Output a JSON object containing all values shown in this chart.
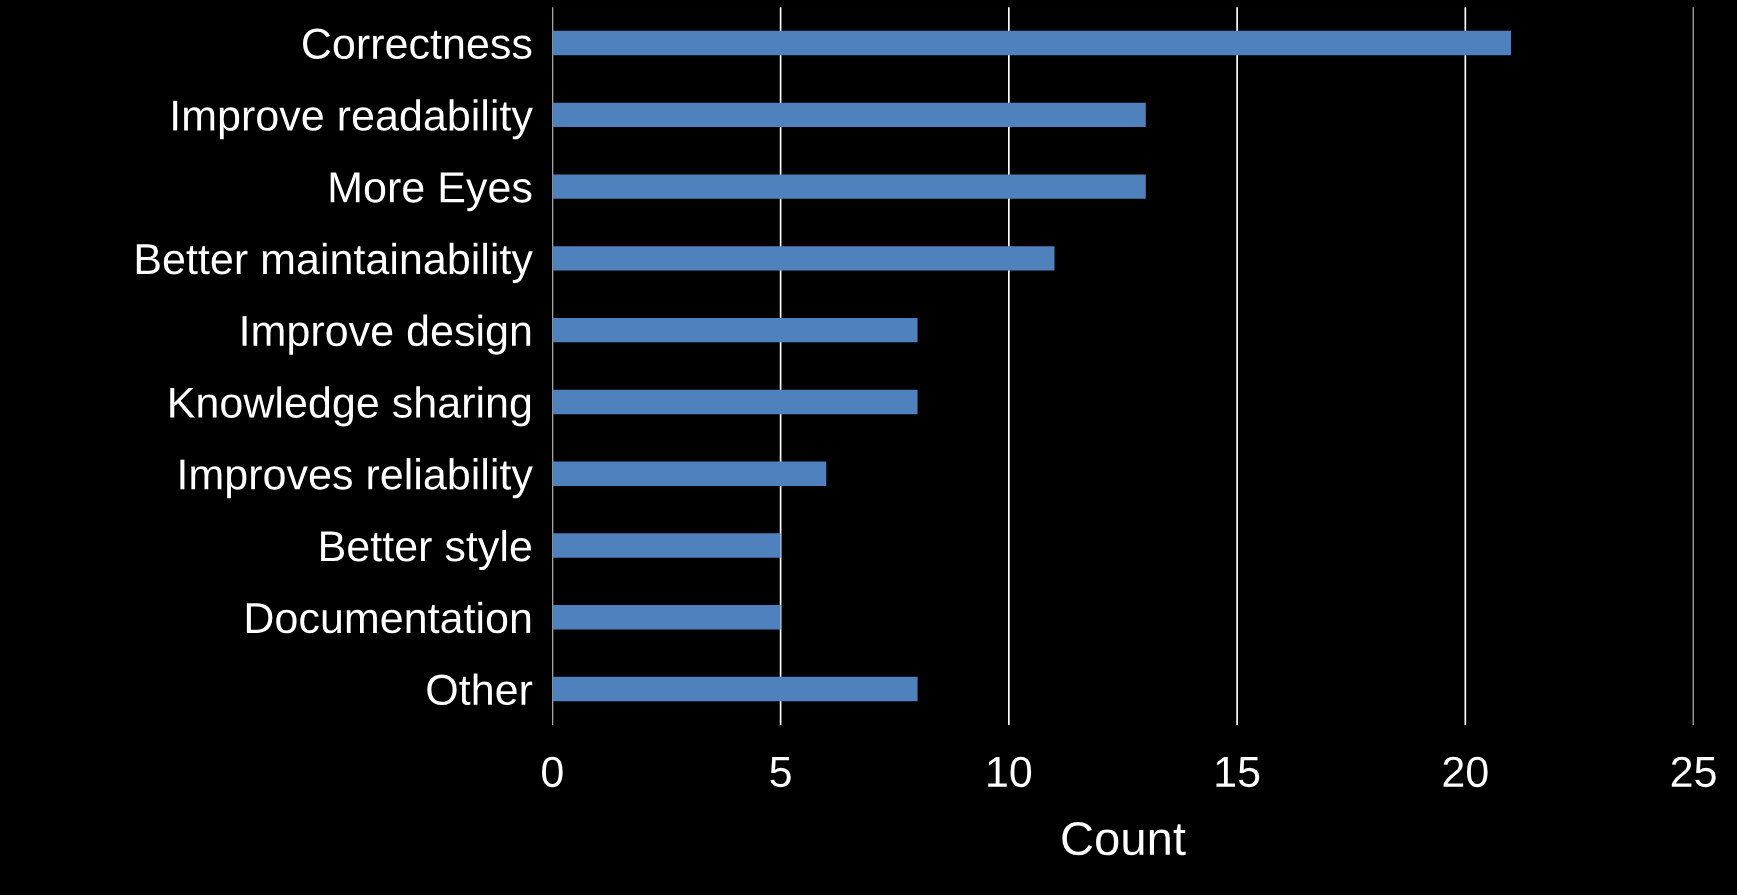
{
  "chart_data": {
    "type": "bar",
    "orientation": "horizontal",
    "xlabel": "Count",
    "categories": [
      "Correctness",
      "Improve readability",
      "More Eyes",
      "Better maintainability",
      "Improve design",
      "Knowledge sharing",
      "Improves reliability",
      "Better style",
      "Documentation",
      "Other"
    ],
    "values": [
      21,
      13,
      13,
      11,
      8,
      8,
      6,
      5,
      5,
      8
    ],
    "color": "#4f81bd",
    "xlim": [
      0,
      25
    ],
    "xticks": [
      0,
      5,
      10,
      15,
      20,
      25
    ],
    "grid": "x",
    "legend": false
  }
}
